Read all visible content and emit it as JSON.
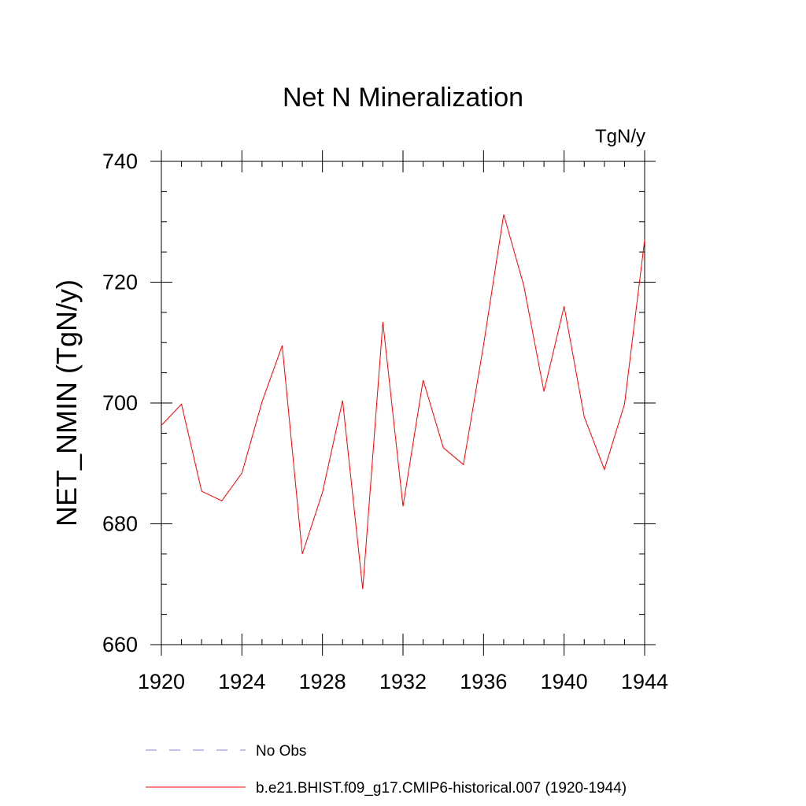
{
  "chart_data": {
    "type": "line",
    "title": "Net N Mineralization",
    "units_label": "TgN/y",
    "xlabel": "",
    "ylabel": "NET_NMIN  (TgN/y)",
    "xlim": [
      1920,
      1944
    ],
    "ylim": [
      660,
      740
    ],
    "x_ticks": [
      1920,
      1924,
      1928,
      1932,
      1936,
      1940,
      1944
    ],
    "x_minor_step": 1,
    "y_ticks": [
      660,
      680,
      700,
      720,
      740
    ],
    "y_minor_step": 5,
    "grid": false,
    "legend_position": "bottom-left",
    "series": [
      {
        "name": "No Obs",
        "style": "dashed",
        "color": "#8a7fc4",
        "x": [],
        "values": []
      },
      {
        "name": "b.e21.BHIST.f09_g17.CMIP6-historical.007 (1920-1944)",
        "style": "solid",
        "color": "#ff0000",
        "x": [
          1920,
          1921,
          1922,
          1923,
          1924,
          1925,
          1926,
          1927,
          1928,
          1929,
          1930,
          1931,
          1932,
          1933,
          1934,
          1935,
          1936,
          1937,
          1938,
          1939,
          1940,
          1941,
          1942,
          1943,
          1944
        ],
        "values": [
          696.3,
          699.8,
          685.4,
          683.8,
          688.4,
          700.2,
          709.5,
          675.0,
          685.2,
          700.4,
          669.2,
          713.4,
          682.9,
          703.8,
          692.6,
          689.8,
          709.6,
          731.2,
          719.4,
          701.9,
          716.0,
          697.7,
          689.0,
          699.8,
          727.0
        ]
      }
    ]
  }
}
